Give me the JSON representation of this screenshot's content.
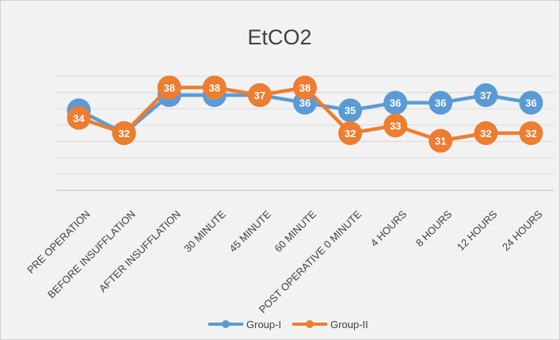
{
  "chart_data": {
    "type": "line",
    "title": "EtCO2",
    "categories": [
      "PRE OPERATION",
      "BEFORE INSUFFLATION",
      "AFTER INSUFFLATION",
      "30 MINUTE",
      "45 MINUTE",
      "60 MINUTE",
      "POST OPERATIVE 0 MINUTE",
      "4 HOURS",
      "8 HOURS",
      "12 HOURS",
      "24 HOURS"
    ],
    "series": [
      {
        "name": "Group-I",
        "color": "#5b9bd5",
        "values": [
          35,
          32,
          37,
          37,
          37,
          36,
          35,
          36,
          36,
          37,
          36
        ]
      },
      {
        "name": "Group-II",
        "color": "#ed7d31",
        "values": [
          34,
          32,
          38,
          38,
          37,
          38,
          32,
          33,
          31,
          32,
          32
        ]
      }
    ],
    "data_labels": true,
    "gridlines": true,
    "legend_position": "bottom"
  }
}
